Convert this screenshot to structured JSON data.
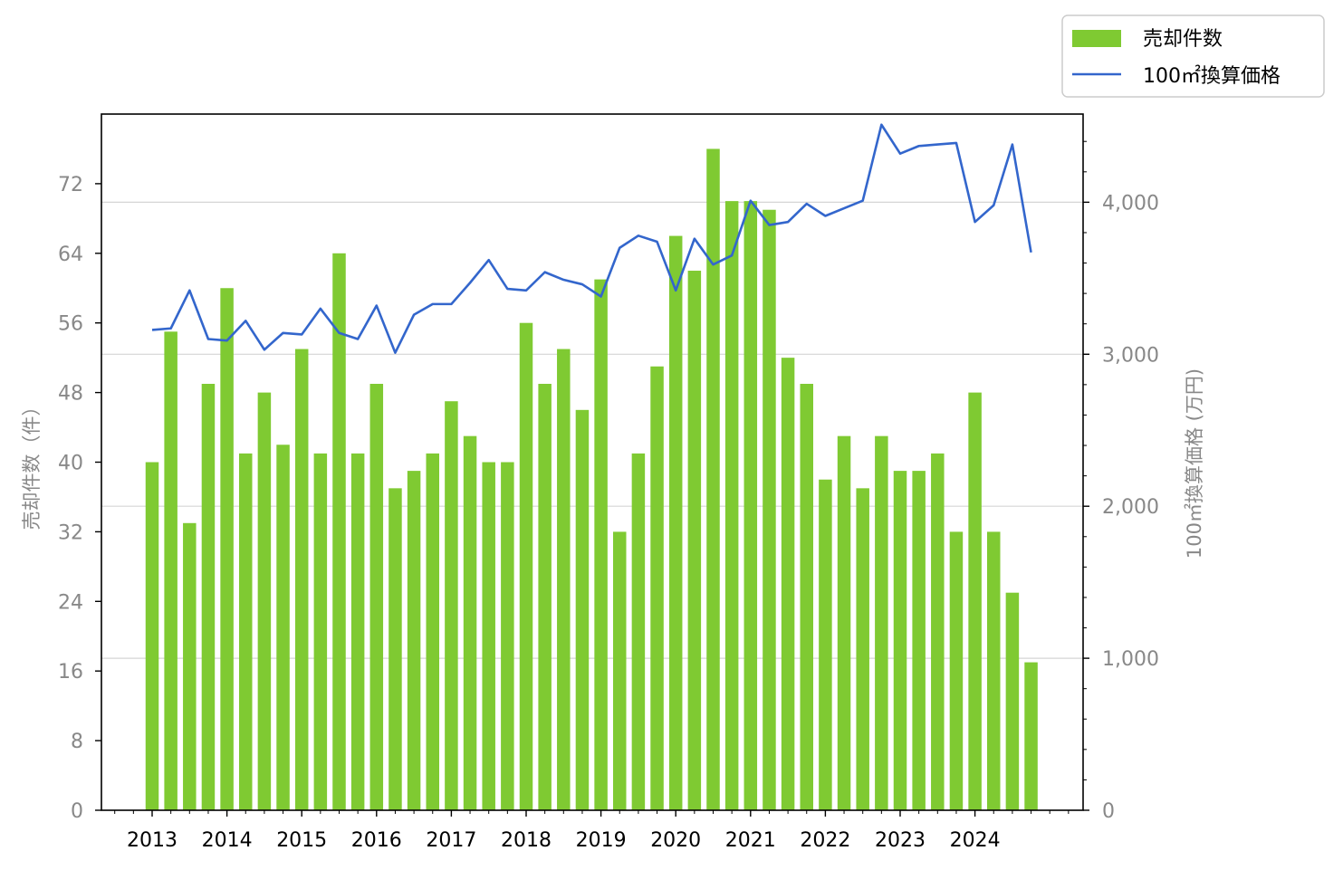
{
  "chart_data": {
    "type": "bar+line",
    "x": [
      "2013",
      "2013-Q2",
      "2013-Q3",
      "2013-Q4",
      "2014",
      "2014-Q2",
      "2014-Q3",
      "2014-Q4",
      "2015",
      "2015-Q2",
      "2015-Q3",
      "2015-Q4",
      "2016",
      "2016-Q2",
      "2016-Q3",
      "2016-Q4",
      "2017",
      "2017-Q2",
      "2017-Q3",
      "2017-Q4",
      "2018",
      "2018-Q2",
      "2018-Q3",
      "2018-Q4",
      "2019",
      "2019-Q2",
      "2019-Q3",
      "2019-Q4",
      "2020",
      "2020-Q2",
      "2020-Q3",
      "2020-Q4",
      "2021",
      "2021-Q2",
      "2021-Q3",
      "2021-Q4",
      "2022",
      "2022-Q2",
      "2022-Q3",
      "2022-Q4",
      "2023",
      "2023-Q2",
      "2023-Q3",
      "2023-Q4",
      "2024",
      "2024-Q2",
      "2024-Q3",
      "2024-Q4"
    ],
    "xticks": [
      "2013",
      "2014",
      "2015",
      "2016",
      "2017",
      "2018",
      "2019",
      "2020",
      "2021",
      "2022",
      "2023",
      "2024"
    ],
    "series": [
      {
        "name": "売却件数",
        "kind": "bar",
        "axis": "left",
        "color": "#7fca32",
        "values": [
          40,
          55,
          33,
          49,
          60,
          41,
          48,
          42,
          53,
          41,
          64,
          41,
          49,
          37,
          39,
          41,
          47,
          43,
          40,
          40,
          56,
          49,
          53,
          46,
          61,
          32,
          41,
          51,
          66,
          62,
          76,
          70,
          70,
          69,
          52,
          49,
          38,
          43,
          37,
          43,
          39,
          39,
          41,
          32,
          48,
          32,
          25,
          17
        ]
      },
      {
        "name": "100㎡換算価格",
        "kind": "line",
        "axis": "right",
        "color": "#3366cc",
        "values": [
          3160,
          3170,
          3420,
          3100,
          3090,
          3220,
          3030,
          3140,
          3130,
          3300,
          3140,
          3100,
          3320,
          3010,
          3260,
          3330,
          3330,
          3470,
          3620,
          3430,
          3420,
          3540,
          3490,
          3460,
          3380,
          3700,
          3780,
          3740,
          3420,
          3760,
          3590,
          3650,
          4010,
          3850,
          3870,
          3990,
          3910,
          3960,
          4010,
          4510,
          4320,
          4370,
          4380,
          4390,
          3870,
          3980,
          4380,
          3670
        ]
      }
    ],
    "ylabel": "売却件数（件）",
    "ylabel_right": "100㎡換算価格 (万円)",
    "yticks_left": [
      "0",
      "8",
      "16",
      "24",
      "32",
      "40",
      "48",
      "56",
      "64",
      "72"
    ],
    "yticks_right": [
      "0",
      "1,000",
      "2,000",
      "3,000",
      "4,000"
    ],
    "ylim_left": [
      0,
      80
    ],
    "ylim_right": [
      0,
      4580
    ],
    "grid": "horizontal (right axis major ticks)",
    "legend_position": "top-right, outside plot"
  }
}
